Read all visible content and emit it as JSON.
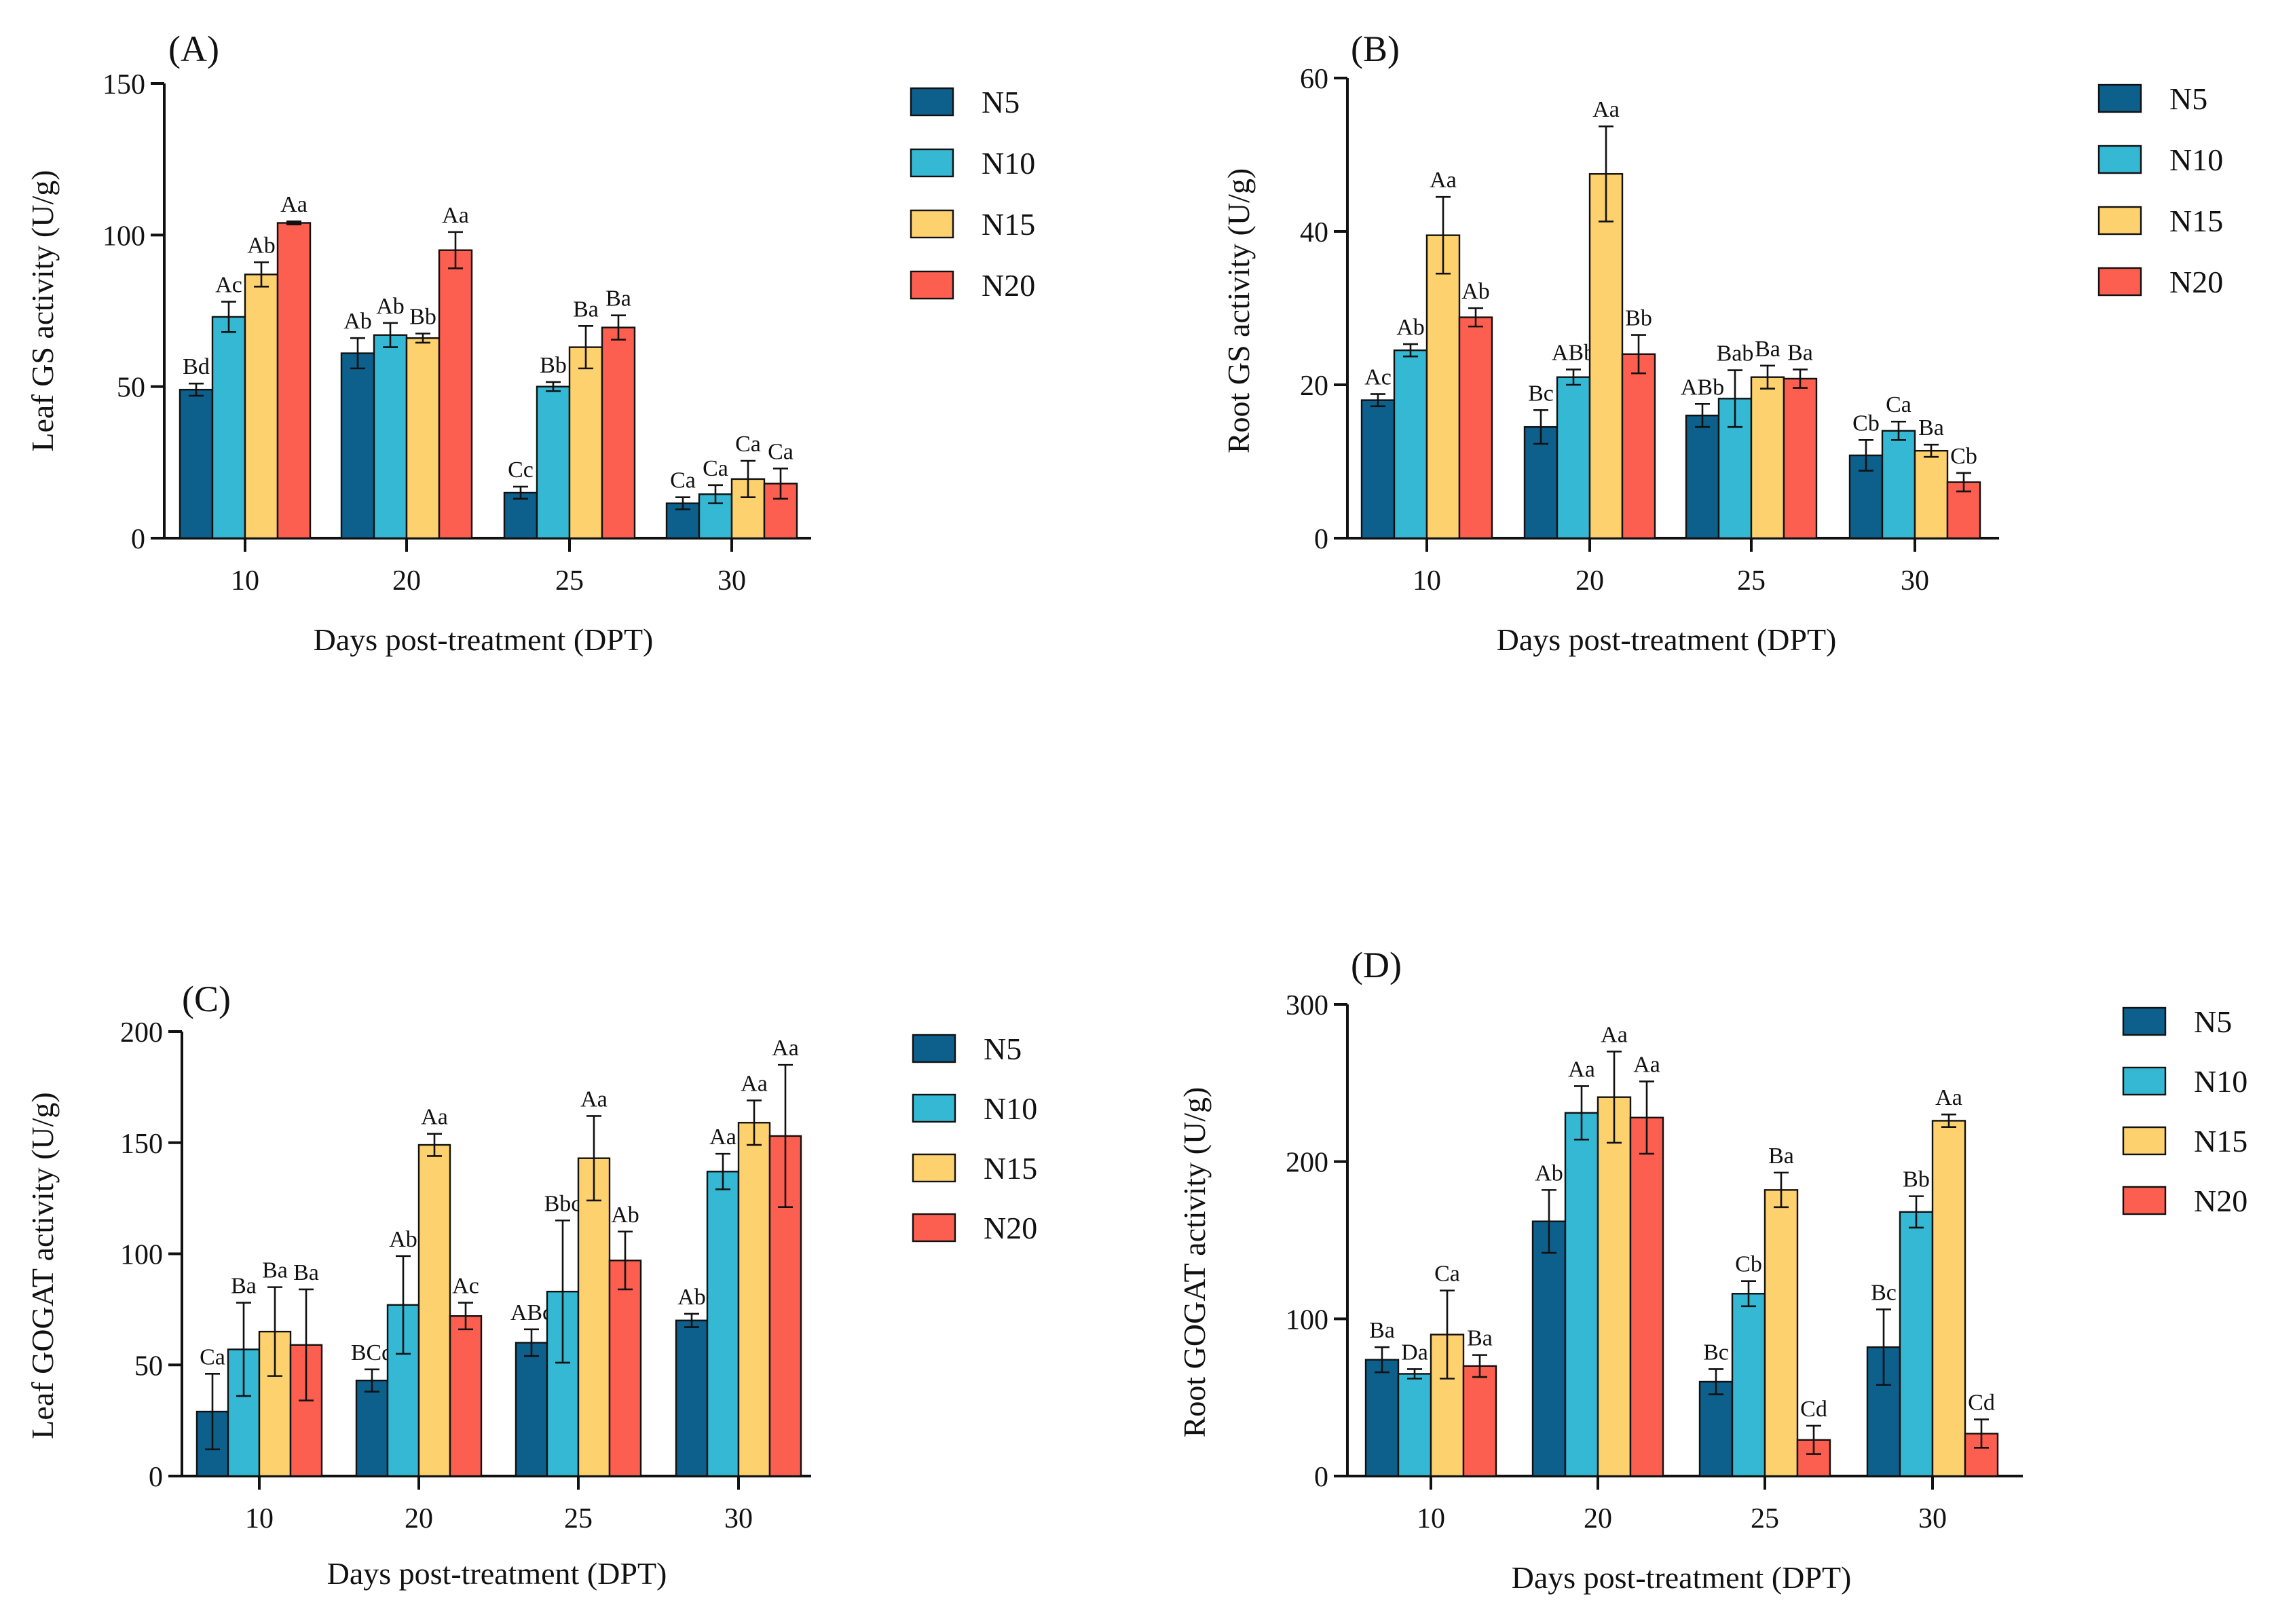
{
  "chart_data": [
    {
      "type": "bar",
      "panel_label": "(A)",
      "title": "",
      "xlabel": "Days post-treatment (DPT)",
      "ylabel": "Leaf GS activity (U/g)",
      "ylim": [
        0,
        150
      ],
      "yticks": [
        0,
        50,
        100,
        150
      ],
      "categories": [
        "10",
        "20",
        "25",
        "30"
      ],
      "legend_position": "right",
      "series": [
        {
          "name": "N5",
          "color": "#0d5f8c",
          "values": [
            49,
            61,
            15,
            11.5
          ],
          "errors": [
            2,
            5,
            2,
            2
          ],
          "labels": [
            "Bd",
            "Ab",
            "Cc",
            "Ca"
          ]
        },
        {
          "name": "N10",
          "color": "#34b8d4",
          "values": [
            73,
            67,
            50,
            14.5
          ],
          "errors": [
            5,
            4,
            1.5,
            3
          ],
          "labels": [
            "Ac",
            "Ab",
            "Bb",
            "Ca"
          ]
        },
        {
          "name": "N15",
          "color": "#fdd16d",
          "values": [
            87,
            66,
            63,
            19.5
          ],
          "errors": [
            4,
            1.5,
            7,
            6
          ],
          "labels": [
            "Ab",
            "Bb",
            "Ba",
            "Ca"
          ]
        },
        {
          "name": "N20",
          "color": "#fc5e50",
          "values": [
            104,
            95,
            69.5,
            18
          ],
          "errors": [
            0.5,
            6,
            4,
            5
          ],
          "labels": [
            "Aa",
            "Aa",
            "Ba",
            "Ca"
          ]
        }
      ]
    },
    {
      "type": "bar",
      "panel_label": "(B)",
      "title": "",
      "xlabel": "Days post-treatment (DPT)",
      "ylabel": "Root GS activity (U/g)",
      "ylim": [
        0,
        60
      ],
      "yticks": [
        0,
        20,
        40,
        60
      ],
      "categories": [
        "10",
        "20",
        "25",
        "30"
      ],
      "legend_position": "right",
      "series": [
        {
          "name": "N5",
          "color": "#0d5f8c",
          "values": [
            18,
            14.5,
            16,
            10.8
          ],
          "errors": [
            0.8,
            2.2,
            1.5,
            2
          ],
          "labels": [
            "Ac",
            "Bc",
            "ABb",
            "Cb"
          ]
        },
        {
          "name": "N10",
          "color": "#34b8d4",
          "values": [
            24.5,
            21,
            18.2,
            14
          ],
          "errors": [
            0.8,
            1,
            3.7,
            1.2
          ],
          "labels": [
            "Ab",
            "ABb",
            "Bab",
            "Ca"
          ]
        },
        {
          "name": "N15",
          "color": "#fdd16d",
          "values": [
            39.5,
            47.5,
            21,
            11.4
          ],
          "errors": [
            5,
            6.2,
            1.5,
            0.8
          ],
          "labels": [
            "Aa",
            "Aa",
            "Ba",
            "Ba"
          ]
        },
        {
          "name": "N20",
          "color": "#fc5e50",
          "values": [
            28.8,
            24,
            20.8,
            7.3
          ],
          "errors": [
            1.2,
            2.5,
            1.2,
            1.2
          ],
          "labels": [
            "Ab",
            "Bb",
            "Ba",
            "Cb"
          ]
        }
      ]
    },
    {
      "type": "bar",
      "panel_label": "(C)",
      "title": "",
      "xlabel": "Days post-treatment (DPT)",
      "ylabel": "Leaf GOGAT activity (U/g)",
      "ylim": [
        0,
        200
      ],
      "yticks": [
        0,
        50,
        100,
        150,
        200
      ],
      "categories": [
        "10",
        "20",
        "25",
        "30"
      ],
      "legend_position": "right",
      "series": [
        {
          "name": "N5",
          "color": "#0d5f8c",
          "values": [
            29,
            43,
            60,
            70
          ],
          "errors": [
            17,
            5,
            6,
            3
          ],
          "labels": [
            "Ca",
            "BCd",
            "ABc",
            "Ab"
          ]
        },
        {
          "name": "N10",
          "color": "#34b8d4",
          "values": [
            57,
            77,
            83,
            137
          ],
          "errors": [
            21,
            22,
            32,
            8
          ],
          "labels": [
            "Ba",
            "Ab",
            "Bbc",
            "Aa"
          ]
        },
        {
          "name": "N15",
          "color": "#fdd16d",
          "values": [
            65,
            149,
            143,
            159
          ],
          "errors": [
            20,
            5,
            19,
            10
          ],
          "labels": [
            "Ba",
            "Aa",
            "Aa",
            "Aa"
          ]
        },
        {
          "name": "N20",
          "color": "#fc5e50",
          "values": [
            59,
            72,
            97,
            153
          ],
          "errors": [
            25,
            6,
            13,
            32
          ],
          "labels": [
            "Ba",
            "Ac",
            "Ab",
            "Aa"
          ]
        }
      ]
    },
    {
      "type": "bar",
      "panel_label": "(D)",
      "title": "",
      "xlabel": "Days post-treatment (DPT)",
      "ylabel": "Root GOGAT activity (U/g)",
      "ylim": [
        0,
        300
      ],
      "yticks": [
        0,
        100,
        200,
        300
      ],
      "categories": [
        "10",
        "20",
        "25",
        "30"
      ],
      "legend_position": "right",
      "series": [
        {
          "name": "N5",
          "color": "#0d5f8c",
          "values": [
            74,
            162,
            60,
            82
          ],
          "errors": [
            8,
            20,
            8,
            24
          ],
          "labels": [
            "Ba",
            "Ab",
            "Bc",
            "Bc"
          ]
        },
        {
          "name": "N10",
          "color": "#34b8d4",
          "values": [
            65,
            231,
            116,
            168
          ],
          "errors": [
            3,
            17,
            8,
            10
          ],
          "labels": [
            "Da",
            "Aa",
            "Cb",
            "Bb"
          ]
        },
        {
          "name": "N15",
          "color": "#fdd16d",
          "values": [
            90,
            241,
            182,
            226
          ],
          "errors": [
            28,
            29,
            11,
            4
          ],
          "labels": [
            "Ca",
            "Aa",
            "Ba",
            "Aa"
          ]
        },
        {
          "name": "N20",
          "color": "#fc5e50",
          "values": [
            70,
            228,
            23,
            27
          ],
          "errors": [
            7,
            23,
            9,
            9
          ],
          "labels": [
            "Ba",
            "Aa",
            "Cd",
            "Cd"
          ]
        }
      ]
    }
  ]
}
